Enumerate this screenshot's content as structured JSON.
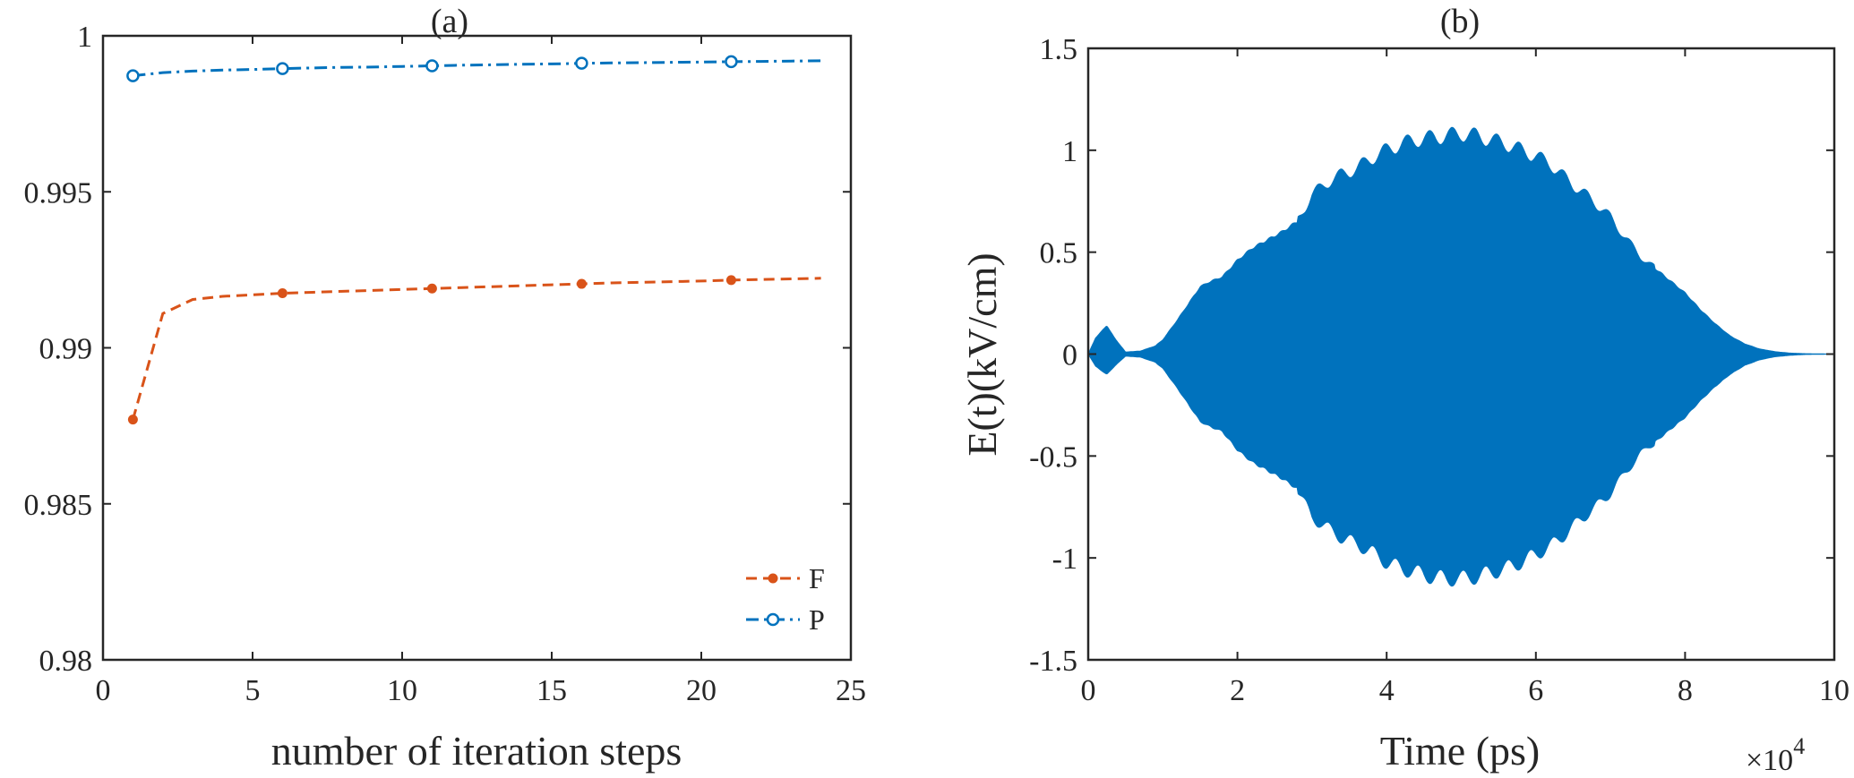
{
  "chart_data": [
    {
      "type": "line",
      "title": "(a)",
      "xlabel": "number of iteration steps",
      "ylabel": "",
      "xlim": [
        0,
        25
      ],
      "ylim": [
        0.98,
        1
      ],
      "xticks": [
        0,
        5,
        10,
        15,
        20,
        25
      ],
      "xtick_labels": [
        "0",
        "5",
        "10",
        "15",
        "20",
        "25"
      ],
      "yticks": [
        0.98,
        0.985,
        0.99,
        0.995,
        1
      ],
      "ytick_labels": [
        "0.98",
        "0.985",
        "0.99",
        "0.995",
        "1"
      ],
      "grid": false,
      "legend_position": "bottom-right",
      "series": [
        {
          "name": "F",
          "color": "#D95319",
          "line_style": "dashed",
          "marker": "filled-circle",
          "x": [
            1,
            2,
            3,
            4,
            5,
            6,
            7,
            8,
            9,
            10,
            11,
            12,
            13,
            14,
            15,
            16,
            17,
            18,
            19,
            20,
            21,
            22,
            23,
            24
          ],
          "y": [
            0.9877,
            0.9911,
            0.99155,
            0.99165,
            0.9917,
            0.99175,
            0.99178,
            0.99181,
            0.99184,
            0.99187,
            0.9919,
            0.99193,
            0.99196,
            0.99199,
            0.99202,
            0.99205,
            0.99208,
            0.9921,
            0.99212,
            0.99214,
            0.99217,
            0.99219,
            0.99221,
            0.99223
          ],
          "marker_x": [
            1,
            6,
            11,
            16,
            21
          ]
        },
        {
          "name": "P",
          "color": "#0072BD",
          "line_style": "dash-dot",
          "marker": "open-circle",
          "x": [
            1,
            2,
            3,
            4,
            5,
            6,
            7,
            8,
            9,
            10,
            11,
            12,
            13,
            14,
            15,
            16,
            17,
            18,
            19,
            20,
            21,
            22,
            23,
            24
          ],
          "y": [
            0.99872,
            0.99882,
            0.99887,
            0.9989,
            0.99892,
            0.99895,
            0.99897,
            0.99899,
            0.999,
            0.99902,
            0.99904,
            0.99906,
            0.99907,
            0.99909,
            0.9991,
            0.99912,
            0.99913,
            0.99914,
            0.99915,
            0.99916,
            0.99917,
            0.99918,
            0.99919,
            0.9992
          ],
          "marker_x": [
            1,
            6,
            11,
            16,
            21
          ]
        }
      ]
    },
    {
      "type": "area",
      "title": "(b)",
      "xlabel": "Time (ps)",
      "ylabel": "E(t)(kV/cm)",
      "x_multiplier_label": "×10",
      "x_multiplier_exponent": "4",
      "xlim": [
        0,
        10
      ],
      "ylim": [
        -1.5,
        1.5
      ],
      "xticks": [
        0,
        2,
        4,
        6,
        8,
        10
      ],
      "xtick_labels": [
        "0",
        "2",
        "4",
        "6",
        "8",
        "10"
      ],
      "yticks": [
        -1.5,
        -1,
        -0.5,
        0,
        0.5,
        1,
        1.5
      ],
      "ytick_labels": [
        "-1.5",
        "-1",
        "-0.5",
        "0",
        "0.5",
        "1",
        "1.5"
      ],
      "grid": false,
      "color": "#0072BD",
      "envelope": {
        "x": [
          0,
          0.1,
          0.25,
          0.35,
          0.5,
          0.7,
          0.9,
          1.0,
          1.2,
          1.5,
          1.6,
          1.8,
          2.0,
          2.2,
          2.4,
          2.6,
          2.8,
          3.0,
          3.2,
          3.4,
          3.6,
          3.8,
          4.0,
          4.2,
          4.4,
          4.6,
          4.8,
          5.0,
          5.2,
          5.4,
          5.6,
          5.8,
          6.0,
          6.2,
          6.4,
          6.6,
          6.8,
          7.0,
          7.2,
          7.4,
          7.6,
          7.8,
          8.0,
          8.2,
          8.4,
          8.6,
          8.8,
          9.0,
          9.2,
          9.4,
          9.6,
          9.8,
          10.0
        ],
        "upper": [
          0,
          0.08,
          0.14,
          0.08,
          0.01,
          0.015,
          0.04,
          0.07,
          0.17,
          0.33,
          0.35,
          0.38,
          0.46,
          0.52,
          0.56,
          0.6,
          0.65,
          0.78,
          0.84,
          0.88,
          0.91,
          0.96,
          1.0,
          1.03,
          1.05,
          1.06,
          1.07,
          1.08,
          1.07,
          1.05,
          1.03,
          1.0,
          0.97,
          0.93,
          0.86,
          0.8,
          0.74,
          0.67,
          0.57,
          0.48,
          0.42,
          0.36,
          0.3,
          0.22,
          0.15,
          0.09,
          0.05,
          0.025,
          0.012,
          0.005,
          0.002,
          0.001,
          0
        ],
        "lower": [
          0,
          -0.06,
          -0.1,
          -0.06,
          -0.01,
          -0.015,
          -0.04,
          -0.07,
          -0.17,
          -0.33,
          -0.35,
          -0.38,
          -0.47,
          -0.53,
          -0.57,
          -0.61,
          -0.66,
          -0.8,
          -0.85,
          -0.9,
          -0.93,
          -0.97,
          -1.02,
          -1.05,
          -1.07,
          -1.09,
          -1.1,
          -1.1,
          -1.09,
          -1.07,
          -1.05,
          -1.02,
          -0.98,
          -0.94,
          -0.88,
          -0.81,
          -0.75,
          -0.68,
          -0.58,
          -0.49,
          -0.43,
          -0.37,
          -0.31,
          -0.23,
          -0.16,
          -0.1,
          -0.055,
          -0.028,
          -0.013,
          -0.006,
          -0.002,
          -0.001,
          0
        ]
      }
    }
  ]
}
